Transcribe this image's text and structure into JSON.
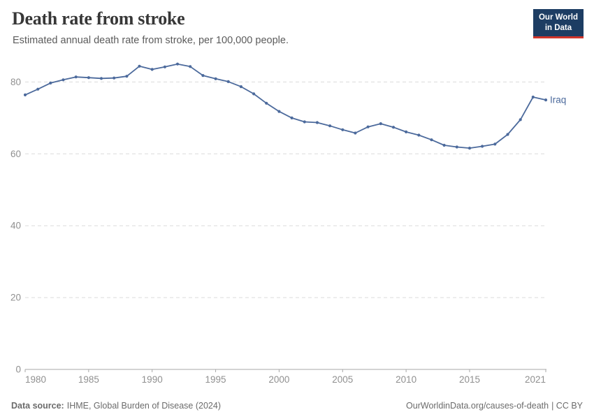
{
  "header": {
    "title": "Death rate from stroke",
    "subtitle": "Estimated annual death rate from stroke, per 100,000 people."
  },
  "logo": {
    "line1": "Our World",
    "line2": "in Data",
    "bg_color": "#1D3D63",
    "accent_color": "#D0352B",
    "text_color": "#FFFFFF"
  },
  "chart_data": {
    "type": "line",
    "title": "Death rate from stroke",
    "subtitle": "Estimated annual death rate from stroke, per 100,000 people.",
    "xlabel": "",
    "ylabel": "",
    "xlim": [
      1980,
      2021
    ],
    "ylim": [
      0,
      86
    ],
    "x_ticks": [
      1980,
      1985,
      1990,
      1995,
      2000,
      2005,
      2010,
      2015,
      2021
    ],
    "y_ticks": [
      0,
      20,
      40,
      60,
      80
    ],
    "grid": "horizontal-dashed",
    "legend": "end-of-line-label",
    "x": [
      1980,
      1981,
      1982,
      1983,
      1984,
      1985,
      1986,
      1987,
      1988,
      1989,
      1990,
      1991,
      1992,
      1993,
      1994,
      1995,
      1996,
      1997,
      1998,
      1999,
      2000,
      2001,
      2002,
      2003,
      2004,
      2005,
      2006,
      2007,
      2008,
      2009,
      2010,
      2011,
      2012,
      2013,
      2014,
      2015,
      2016,
      2017,
      2018,
      2019,
      2020,
      2021
    ],
    "series": [
      {
        "name": "Iraq",
        "color": "#4C6A9C",
        "values": [
          76.4,
          78.0,
          79.7,
          80.6,
          81.4,
          81.2,
          81.0,
          81.1,
          81.6,
          84.4,
          83.5,
          84.2,
          85.0,
          84.3,
          81.8,
          80.9,
          80.1,
          78.7,
          76.7,
          74.1,
          71.8,
          70.0,
          68.9,
          68.7,
          67.8,
          66.7,
          65.8,
          67.5,
          68.4,
          67.4,
          66.1,
          65.2,
          63.9,
          62.4,
          61.9,
          61.6,
          62.1,
          62.7,
          65.4,
          69.5,
          75.8,
          75.0
        ]
      }
    ],
    "axis_color": "#A7A7A7",
    "grid_color": "#DCDCDC",
    "tick_label_color": "#909090"
  },
  "footer": {
    "source_label": "Data source:",
    "source_text": "IHME, Global Burden of Disease (2024)",
    "link": "OurWorldinData.org/causes-of-death",
    "license": "| CC BY"
  }
}
